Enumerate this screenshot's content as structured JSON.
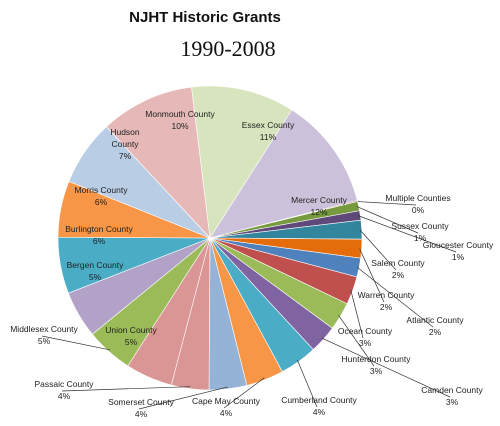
{
  "chart_data": {
    "type": "pie",
    "title": "NJHT Historic Grants",
    "subtitle": "1990-2008",
    "slices": [
      {
        "name": "Essex County",
        "percent": 11,
        "label": "11%",
        "color": "#d7e4bd"
      },
      {
        "name": "Mercer County",
        "percent": 12,
        "label": "12%",
        "color": "#ccc1da"
      },
      {
        "name": "Multiple Counties",
        "percent": 0,
        "label": "0%",
        "color": "#9b2d2a"
      },
      {
        "name": "Sussex County",
        "percent": 1,
        "label": "1%",
        "color": "#779a3e"
      },
      {
        "name": "Gloucester County",
        "percent": 1,
        "label": "1%",
        "color": "#5f497a"
      },
      {
        "name": "Salem County",
        "percent": 2,
        "label": "2%",
        "color": "#31859c"
      },
      {
        "name": "Warren County",
        "percent": 2,
        "label": "2%",
        "color": "#e46c0a"
      },
      {
        "name": "Atlantic County",
        "percent": 2,
        "label": "2%",
        "color": "#4f81bd"
      },
      {
        "name": "Ocean County",
        "percent": 3,
        "label": "3%",
        "color": "#c0504d"
      },
      {
        "name": "Hunterdon County",
        "percent": 3,
        "label": "3%",
        "color": "#9bbb59"
      },
      {
        "name": "Camden County",
        "percent": 3,
        "label": "3%",
        "color": "#8064a2"
      },
      {
        "name": "Cumberland County",
        "percent": 4,
        "label": "4%",
        "color": "#4bacc6"
      },
      {
        "name": "Cape May County",
        "percent": 4,
        "label": "4%",
        "color": "#f79646"
      },
      {
        "name": "Somerset County",
        "percent": 4,
        "label": "4%",
        "color": "#95b3d7"
      },
      {
        "name": "Passaic County",
        "percent": 4,
        "label": "4%",
        "color": "#d99694"
      },
      {
        "name": "Union County",
        "percent": 5,
        "label": "5%",
        "color": "#d99694"
      },
      {
        "name": "Middlesex County",
        "percent": 5,
        "label": "5%",
        "color": "#9bbb59"
      },
      {
        "name": "Bergen County",
        "percent": 5,
        "label": "5%",
        "color": "#b3a2c7"
      },
      {
        "name": "Burlington County",
        "percent": 6,
        "label": "6%",
        "color": "#4bacc6"
      },
      {
        "name": "Morris County",
        "percent": 6,
        "label": "6%",
        "color": "#f79646"
      },
      {
        "name": "Hudson County",
        "percent": 7,
        "label": "7%",
        "color": "#b9cde5"
      },
      {
        "name": "Monmouth County",
        "percent": 10,
        "label": "10%",
        "color": "#e6b9b8"
      }
    ]
  }
}
